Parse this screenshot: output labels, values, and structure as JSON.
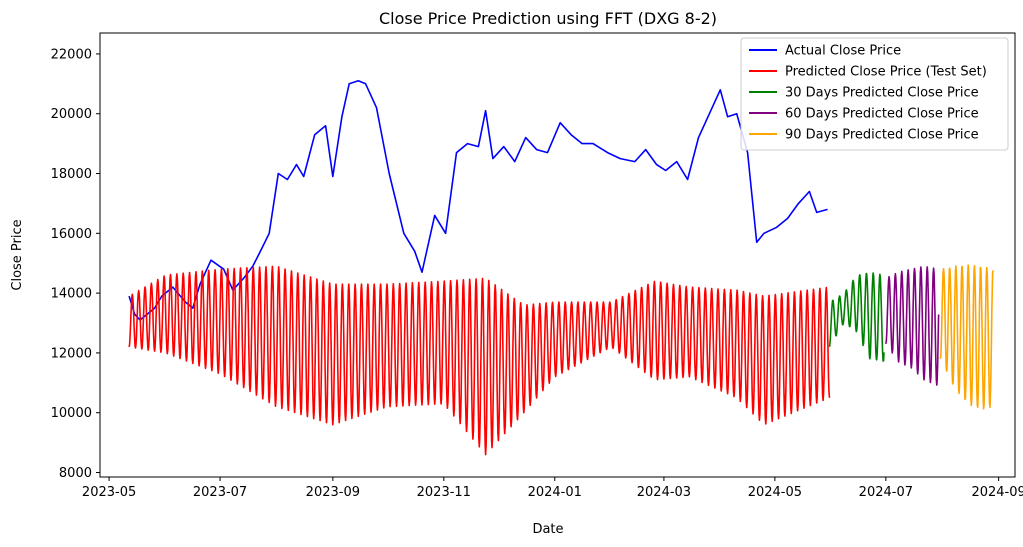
{
  "chart_data": {
    "type": "line",
    "title": "Close Price Prediction using FFT (DXG 8-2)",
    "xlabel": "Date",
    "ylabel": "Close Price",
    "xlim": [
      "2023-04-26",
      "2024-09-10"
    ],
    "ylim": [
      7850,
      22700
    ],
    "x_ticks": [
      "2023-05-01",
      "2023-07-01",
      "2023-09-01",
      "2023-11-01",
      "2024-01-01",
      "2024-03-01",
      "2024-05-01",
      "2024-07-01",
      "2024-09-01"
    ],
    "x_tick_labels": [
      "2023-05",
      "2023-07",
      "2023-09",
      "2023-11",
      "2024-01",
      "2024-03",
      "2024-05",
      "2024-07",
      "2024-09"
    ],
    "y_ticks": [
      8000,
      10000,
      12000,
      14000,
      16000,
      18000,
      20000,
      22000
    ],
    "legend_position": "top-right",
    "grid": false,
    "series": [
      {
        "name": "Actual Close Price",
        "color": "#0000ff",
        "kind": "polyline",
        "x": [
          "2023-05-12",
          "2023-05-15",
          "2023-05-18",
          "2023-05-22",
          "2023-05-26",
          "2023-05-30",
          "2023-06-05",
          "2023-06-12",
          "2023-06-16",
          "2023-06-20",
          "2023-06-26",
          "2023-07-03",
          "2023-07-08",
          "2023-07-14",
          "2023-07-19",
          "2023-07-24",
          "2023-07-28",
          "2023-08-02",
          "2023-08-07",
          "2023-08-12",
          "2023-08-16",
          "2023-08-22",
          "2023-08-28",
          "2023-09-01",
          "2023-09-06",
          "2023-09-10",
          "2023-09-15",
          "2023-09-19",
          "2023-09-25",
          "2023-10-02",
          "2023-10-10",
          "2023-10-16",
          "2023-10-20",
          "2023-10-27",
          "2023-11-02",
          "2023-11-08",
          "2023-11-14",
          "2023-11-20",
          "2023-11-24",
          "2023-11-28",
          "2023-12-04",
          "2023-12-10",
          "2023-12-16",
          "2023-12-22",
          "2023-12-28",
          "2024-01-04",
          "2024-01-10",
          "2024-01-16",
          "2024-01-22",
          "2024-01-30",
          "2024-02-06",
          "2024-02-14",
          "2024-02-20",
          "2024-02-26",
          "2024-03-02",
          "2024-03-08",
          "2024-03-14",
          "2024-03-20",
          "2024-03-26",
          "2024-04-01",
          "2024-04-05",
          "2024-04-10",
          "2024-04-16",
          "2024-04-21",
          "2024-04-25",
          "2024-05-02",
          "2024-05-08",
          "2024-05-14",
          "2024-05-20",
          "2024-05-24",
          "2024-05-30"
        ],
        "y": [
          13900,
          13300,
          13100,
          13300,
          13500,
          13900,
          14200,
          13700,
          13500,
          14300,
          15100,
          14800,
          14100,
          14500,
          14900,
          15500,
          16000,
          18000,
          17800,
          18300,
          17900,
          19300,
          19600,
          17900,
          19900,
          21000,
          21100,
          21000,
          20200,
          18000,
          16000,
          15400,
          14700,
          16600,
          16000,
          18700,
          19000,
          18900,
          20100,
          18500,
          18900,
          18400,
          19200,
          18800,
          18700,
          19700,
          19300,
          19000,
          19000,
          18700,
          18500,
          18400,
          18800,
          18300,
          18100,
          18400,
          17800,
          19200,
          20000,
          20800,
          19900,
          20000,
          18700,
          15700,
          16000,
          16200,
          16500,
          17000,
          17400,
          16700,
          16800
        ]
      },
      {
        "name": "Predicted Close Price (Test Set)",
        "color": "#ff0000",
        "kind": "oscillation",
        "x_start": "2023-05-12",
        "x_end": "2024-05-31",
        "x": [
          "2023-05-12",
          "2023-06-01",
          "2023-07-01",
          "2023-08-01",
          "2023-09-01",
          "2023-10-01",
          "2023-11-01",
          "2023-11-24",
          "2023-12-15",
          "2024-01-01",
          "2024-02-01",
          "2024-02-25",
          "2024-03-15",
          "2024-04-10",
          "2024-04-25",
          "2024-05-31"
        ],
        "upper": [
          13900,
          14600,
          14800,
          14900,
          14300,
          14300,
          14400,
          14500,
          13600,
          13700,
          13700,
          14400,
          14200,
          14100,
          13900,
          14200
        ],
        "lower": [
          12200,
          12000,
          11300,
          10200,
          9600,
          10200,
          10300,
          8600,
          10000,
          11200,
          12200,
          11100,
          11200,
          10500,
          9600,
          10500
        ],
        "period_days": 3.5
      },
      {
        "name": "30 Days Predicted Close Price",
        "color": "#008000",
        "kind": "oscillation",
        "x_start": "2024-05-31",
        "x_end": "2024-06-30",
        "x": [
          "2024-05-31",
          "2024-06-08",
          "2024-06-15",
          "2024-06-22",
          "2024-06-30"
        ],
        "upper": [
          13700,
          14000,
          14600,
          14700,
          14600
        ],
        "lower": [
          12200,
          13000,
          12700,
          11800,
          11700
        ],
        "period_days": 3.7
      },
      {
        "name": "60 Days Predicted Close Price",
        "color": "#800080",
        "kind": "oscillation",
        "x_start": "2024-07-01",
        "x_end": "2024-07-30",
        "x": [
          "2024-07-01",
          "2024-07-08",
          "2024-07-15",
          "2024-07-22",
          "2024-07-30"
        ],
        "upper": [
          14500,
          14700,
          14800,
          14900,
          14800
        ],
        "lower": [
          12300,
          11700,
          11500,
          11100,
          10900
        ],
        "period_days": 3.5
      },
      {
        "name": "90 Days Predicted Close Price",
        "color": "#ffa500",
        "kind": "oscillation",
        "x_start": "2024-07-31",
        "x_end": "2024-08-29",
        "x": [
          "2024-07-31",
          "2024-08-08",
          "2024-08-15",
          "2024-08-22",
          "2024-08-29"
        ],
        "upper": [
          14800,
          14900,
          14950,
          14900,
          14800
        ],
        "lower": [
          11800,
          10800,
          10300,
          10100,
          10200
        ],
        "period_days": 3.4
      }
    ]
  }
}
